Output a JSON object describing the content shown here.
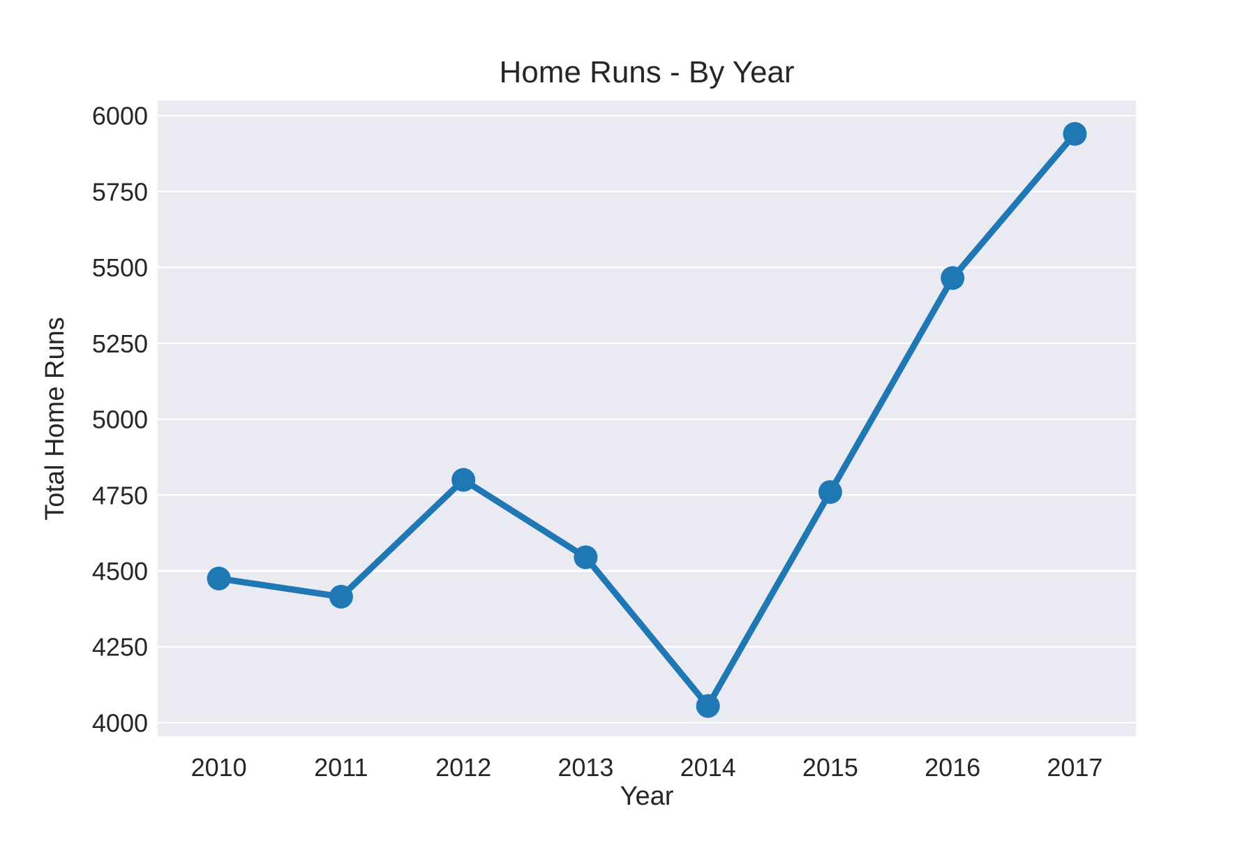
{
  "chart_data": {
    "type": "line",
    "title": "Home Runs - By Year",
    "xlabel": "Year",
    "ylabel": "Total Home Runs",
    "categories": [
      "2010",
      "2011",
      "2012",
      "2013",
      "2014",
      "2015",
      "2016",
      "2017"
    ],
    "series": [
      {
        "values": [
          4475,
          4415,
          4800,
          4545,
          4055,
          4760,
          5465,
          5940
        ],
        "color": "#1f77b4"
      }
    ],
    "ylim": [
      3955,
      6050
    ],
    "yticks": [
      4000,
      4250,
      4500,
      4750,
      5000,
      5250,
      5500,
      5750,
      6000
    ],
    "grid": true,
    "legend": "none",
    "colors": {
      "background": "#eaeaf2",
      "grid": "#ffffff",
      "line": "#1f77b4",
      "text": "#262626"
    }
  }
}
